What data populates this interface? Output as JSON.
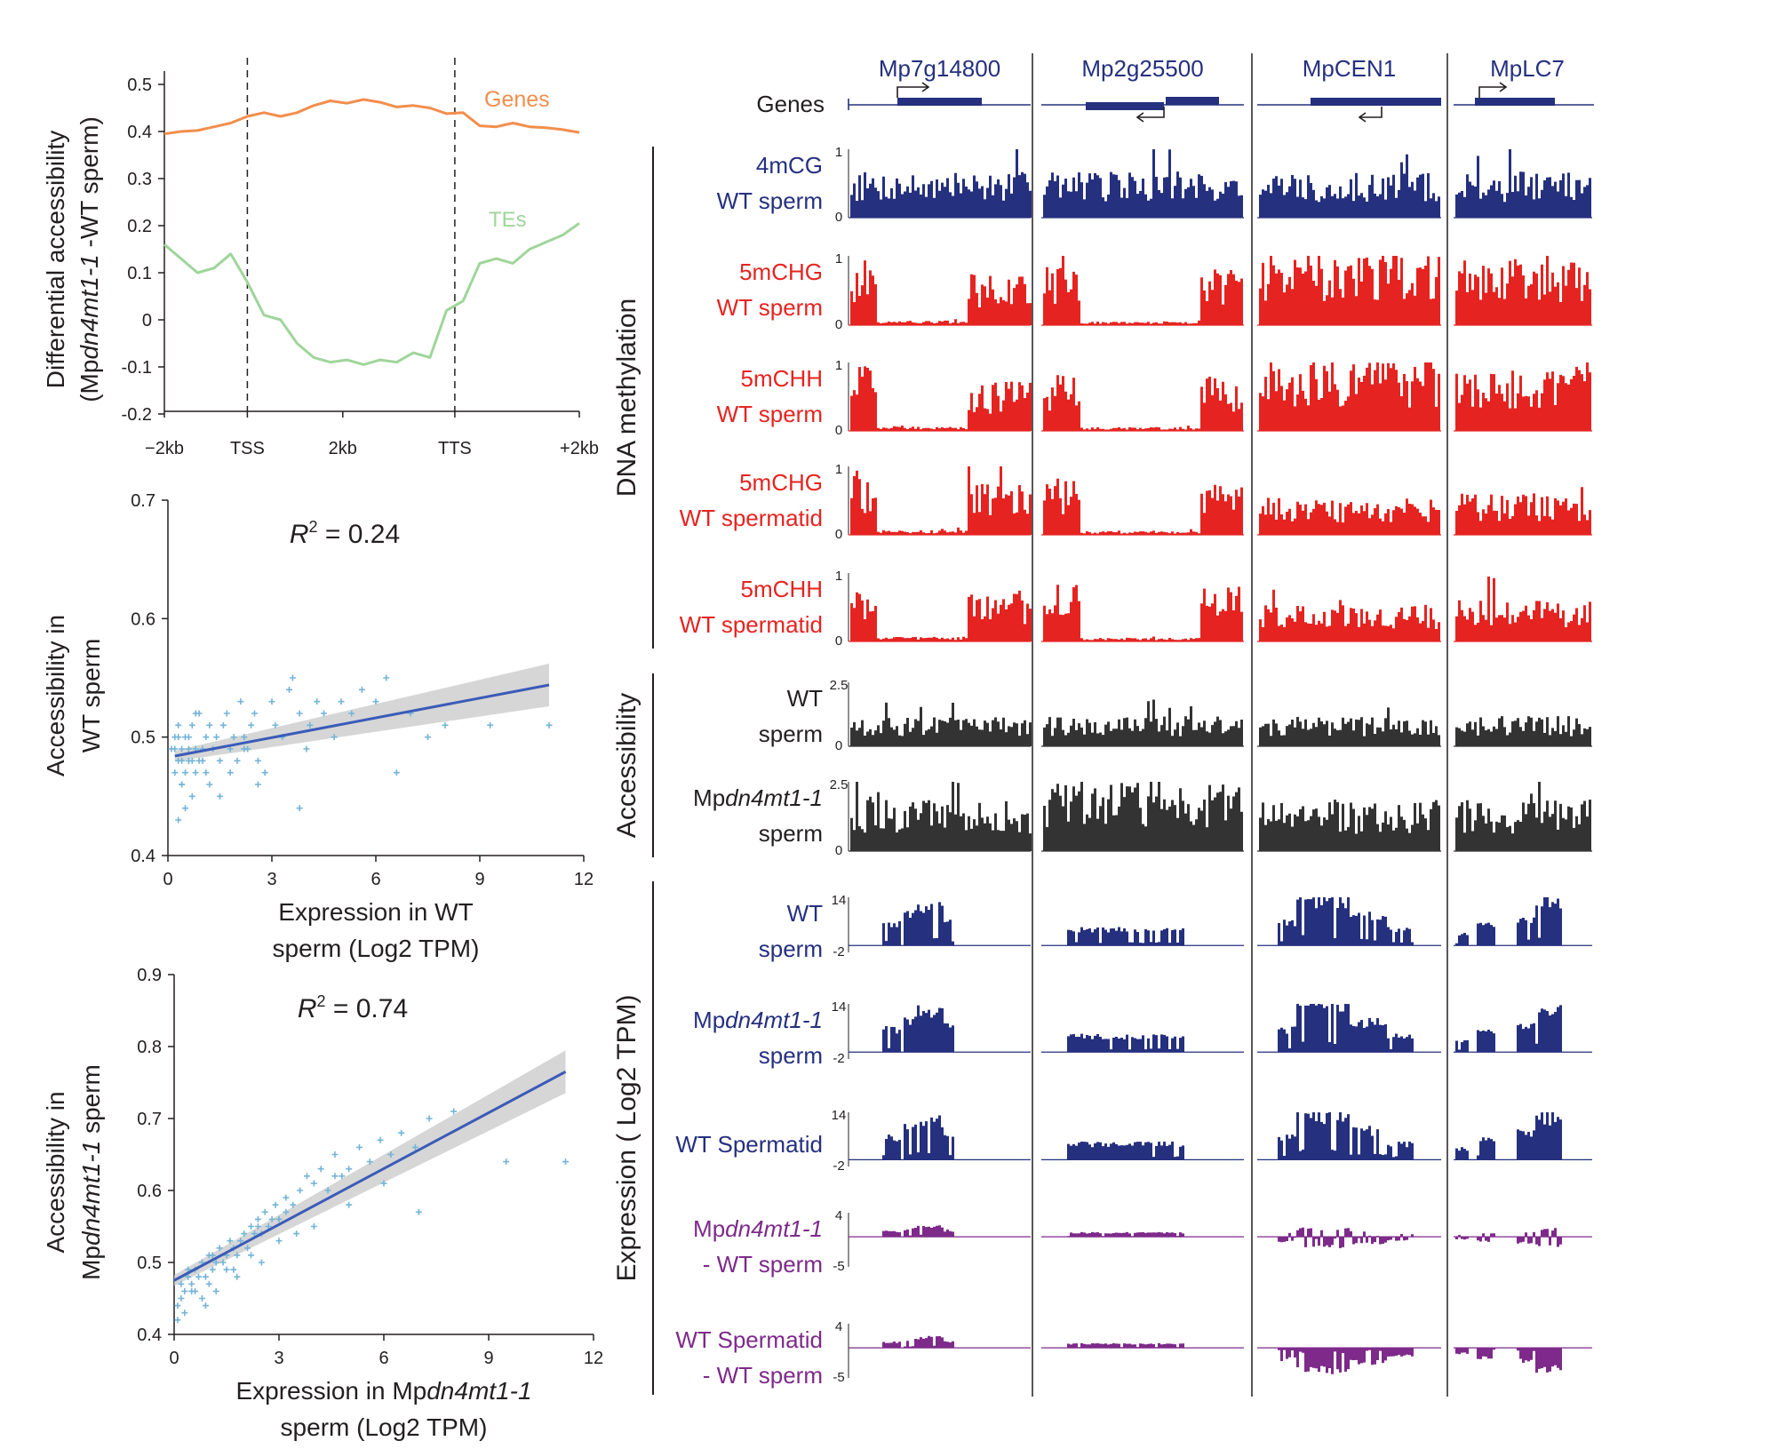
{
  "colors": {
    "genes_line": "#f28e4d",
    "tes_line": "#9fd59a",
    "navy": "#25307f",
    "red": "#e52421",
    "dark_grey": "#333333",
    "purple": "#7d2a8a",
    "regression": "#3a5bb8",
    "scatter": "#74b4d8",
    "ci_band": "#c8c8c8"
  },
  "chart_data": [
    {
      "type": "line",
      "ylabel_line1": "Differential accessibility",
      "ylabel_line2_prefix": "(Mp",
      "ylabel_line2_italic": "dn4mt1-1",
      "ylabel_line2_suffix": " -WT sperm)",
      "yticks": [
        "0.5",
        "0.4",
        "0.3",
        "0.2",
        "0.1",
        "0",
        "-0.1",
        "-0.2"
      ],
      "ytick_values": [
        0.5,
        0.4,
        0.3,
        0.2,
        0.1,
        0,
        -0.1,
        -0.2
      ],
      "xticks": [
        "−2kb",
        "TSS",
        "2kb",
        "TTS",
        "+2kb"
      ],
      "ylim": [
        -0.22,
        0.52
      ],
      "x": [
        0,
        0.04,
        0.08,
        0.12,
        0.16,
        0.2,
        0.24,
        0.28,
        0.32,
        0.36,
        0.4,
        0.44,
        0.48,
        0.52,
        0.56,
        0.6,
        0.64,
        0.68,
        0.72,
        0.76,
        0.8,
        0.84,
        0.88,
        0.92,
        0.96,
        1.0
      ],
      "series": [
        {
          "name": "Genes",
          "values": [
            0.395,
            0.4,
            0.402,
            0.41,
            0.418,
            0.432,
            0.44,
            0.432,
            0.44,
            0.455,
            0.465,
            0.46,
            0.468,
            0.462,
            0.452,
            0.455,
            0.45,
            0.438,
            0.44,
            0.412,
            0.41,
            0.418,
            0.41,
            0.408,
            0.404,
            0.398
          ]
        },
        {
          "name": "TEs",
          "values": [
            0.16,
            0.13,
            0.1,
            0.11,
            0.14,
            0.08,
            0.01,
            0.0,
            -0.05,
            -0.08,
            -0.09,
            -0.085,
            -0.095,
            -0.085,
            -0.09,
            -0.07,
            -0.08,
            0.02,
            0.04,
            0.12,
            0.13,
            0.12,
            0.15,
            0.165,
            0.18,
            0.205
          ]
        }
      ]
    },
    {
      "type": "scatter",
      "ylabel_lines": [
        "Accessibility in",
        "WT sperm"
      ],
      "xlabel_lines": [
        "Expression in WT",
        "sperm (Log2 TPM)"
      ],
      "annotation_prefix": "R",
      "annotation_sup": "2",
      "annotation_value": " = 0.24",
      "xlim": [
        0,
        12
      ],
      "ylim": [
        0.4,
        0.7
      ],
      "xticks": [
        "0",
        "3",
        "6",
        "9",
        "12"
      ],
      "yticks": [
        "0.7",
        "0.6",
        "0.5",
        "0.4"
      ],
      "fit": {
        "x": [
          0.2,
          11
        ],
        "y": [
          0.484,
          0.544
        ]
      },
      "points": {
        "x": [
          0.1,
          0.2,
          0.2,
          0.3,
          0.3,
          0.4,
          0.4,
          0.5,
          0.5,
          0.6,
          0.6,
          0.7,
          0.7,
          0.8,
          0.8,
          0.9,
          1.0,
          1.0,
          1.1,
          1.2,
          1.2,
          1.3,
          1.4,
          1.5,
          1.6,
          1.7,
          1.8,
          1.9,
          2.0,
          2.1,
          2.2,
          2.3,
          2.4,
          2.5,
          2.6,
          2.8,
          3.0,
          3.1,
          3.3,
          3.5,
          3.6,
          3.8,
          4.0,
          4.1,
          4.3,
          4.5,
          4.8,
          5.0,
          5.3,
          5.6,
          6.0,
          6.3,
          6.6,
          7.0,
          7.5,
          8.0,
          9.3,
          11.0,
          0.3,
          0.5,
          0.4,
          0.6,
          0.9,
          1.1,
          0.2,
          0.3,
          0.7,
          1.5,
          0.8,
          2.6,
          0.4,
          1.8,
          2.2,
          3.8,
          0.6
        ],
        "y": [
          0.49,
          0.5,
          0.47,
          0.48,
          0.51,
          0.46,
          0.49,
          0.47,
          0.5,
          0.48,
          0.49,
          0.45,
          0.51,
          0.49,
          0.47,
          0.52,
          0.49,
          0.48,
          0.5,
          0.51,
          0.46,
          0.49,
          0.5,
          0.48,
          0.51,
          0.52,
          0.49,
          0.5,
          0.48,
          0.53,
          0.5,
          0.49,
          0.51,
          0.52,
          0.48,
          0.47,
          0.53,
          0.51,
          0.5,
          0.54,
          0.55,
          0.52,
          0.49,
          0.51,
          0.53,
          0.52,
          0.5,
          0.53,
          0.52,
          0.54,
          0.53,
          0.55,
          0.47,
          0.52,
          0.5,
          0.51,
          0.51,
          0.51,
          0.43,
          0.44,
          0.46,
          0.5,
          0.48,
          0.47,
          0.49,
          0.5,
          0.48,
          0.45,
          0.52,
          0.46,
          0.48,
          0.47,
          0.49,
          0.44,
          0.48
        ]
      }
    },
    {
      "type": "scatter",
      "ylabel_lines": [
        "Accessibility in",
        "Mp|dn4mt1-1| sperm"
      ],
      "xlabel_lines": [
        "Expression in Mp|dn4mt1-1",
        "sperm (Log2 TPM)"
      ],
      "annotation_prefix": "R",
      "annotation_sup": "2",
      "annotation_value": " = 0.74",
      "xlim": [
        0,
        12
      ],
      "ylim": [
        0.4,
        0.9
      ],
      "xticks": [
        "0",
        "3",
        "6",
        "9",
        "12"
      ],
      "yticks": [
        "0.9",
        "0.8",
        "0.7",
        "0.6",
        "0.5",
        "0.4"
      ],
      "fit": {
        "x": [
          0,
          11.2
        ],
        "y": [
          0.475,
          0.765
        ]
      },
      "points": {
        "x": [
          0.1,
          0.2,
          0.3,
          0.4,
          0.5,
          0.6,
          0.7,
          0.8,
          0.9,
          1.0,
          1.1,
          1.2,
          1.3,
          1.4,
          1.5,
          1.6,
          1.7,
          1.8,
          1.9,
          2.0,
          2.1,
          2.2,
          2.3,
          2.4,
          2.5,
          2.6,
          2.7,
          2.8,
          2.9,
          3.0,
          3.2,
          3.4,
          3.6,
          3.8,
          4.0,
          4.2,
          4.4,
          4.6,
          4.8,
          5.0,
          5.3,
          5.6,
          5.9,
          6.2,
          6.5,
          6.9,
          7.3,
          8.0,
          9.5,
          11.2,
          0.1,
          0.2,
          0.3,
          0.5,
          0.8,
          1.0,
          1.2,
          1.5,
          1.8,
          2.2,
          2.5,
          3.0,
          3.5,
          4.0,
          5.0,
          6.0,
          7.0,
          0.4,
          0.6,
          1.1,
          1.7,
          2.4,
          3.2,
          4.6,
          0.9
        ],
        "y": [
          0.44,
          0.47,
          0.46,
          0.48,
          0.47,
          0.49,
          0.48,
          0.5,
          0.48,
          0.51,
          0.49,
          0.5,
          0.52,
          0.5,
          0.51,
          0.53,
          0.52,
          0.51,
          0.53,
          0.54,
          0.52,
          0.55,
          0.54,
          0.56,
          0.54,
          0.57,
          0.55,
          0.56,
          0.58,
          0.56,
          0.59,
          0.58,
          0.6,
          0.62,
          0.61,
          0.63,
          0.6,
          0.65,
          0.62,
          0.63,
          0.66,
          0.64,
          0.67,
          0.65,
          0.68,
          0.66,
          0.7,
          0.71,
          0.64,
          0.64,
          0.42,
          0.45,
          0.43,
          0.46,
          0.45,
          0.47,
          0.46,
          0.49,
          0.48,
          0.51,
          0.5,
          0.53,
          0.54,
          0.55,
          0.58,
          0.61,
          0.57,
          0.49,
          0.46,
          0.51,
          0.49,
          0.55,
          0.57,
          0.62,
          0.44
        ]
      }
    }
  ],
  "browser": {
    "genes_label": "Genes",
    "loci": [
      "Mp7g14800",
      "Mp2g25500",
      "MpCEN1",
      "MpLC7"
    ],
    "group_labels": [
      "DNA methylation",
      "Accessibility",
      "Expression ( Log2 TPM)"
    ],
    "tracks": [
      {
        "line1": "4mCG",
        "line2": "WT sperm",
        "top": "1",
        "bottom": "0",
        "color": "navy",
        "group": 0
      },
      {
        "line1": "5mCHG",
        "line2": "WT sperm",
        "top": "1",
        "bottom": "0",
        "color": "red",
        "group": 0
      },
      {
        "line1": "5mCHH",
        "line2": "WT sperm",
        "top": "1",
        "bottom": "0",
        "color": "red",
        "group": 0
      },
      {
        "line1": "5mCHG",
        "line2": "WT spermatid",
        "top": "1",
        "bottom": "0",
        "color": "red",
        "group": 0
      },
      {
        "line1": "5mCHH",
        "line2": "WT spermatid",
        "top": "1",
        "bottom": "0",
        "color": "red",
        "group": 0
      },
      {
        "line1": "WT",
        "line2": "sperm",
        "top": "2.5",
        "bottom": "0",
        "color": "dark_grey",
        "group": 1
      },
      {
        "line1": "Mp|dn4mt1-1",
        "line2": "sperm",
        "top": "2.5",
        "bottom": "0",
        "color": "dark_grey",
        "group": 1
      },
      {
        "line1": "WT",
        "line2": "sperm",
        "top": "14",
        "bottom": "-2",
        "color": "navy",
        "group": 2
      },
      {
        "line1": "Mp|dn4mt1-1",
        "line2": "sperm",
        "top": "14",
        "bottom": "-2",
        "color": "navy",
        "group": 2
      },
      {
        "line1": "WT Spermatid",
        "line2": "",
        "top": "14",
        "bottom": "-2",
        "color": "navy",
        "group": 2
      },
      {
        "line1": "Mp|dn4mt1-1",
        "line2": "- WT sperm",
        "top": "4",
        "bottom": "-5",
        "color": "purple",
        "group": 2
      },
      {
        "line1": "WT Spermatid",
        "line2": "- WT sperm",
        "top": "4",
        "bottom": "-5",
        "color": "purple",
        "group": 2
      }
    ]
  }
}
